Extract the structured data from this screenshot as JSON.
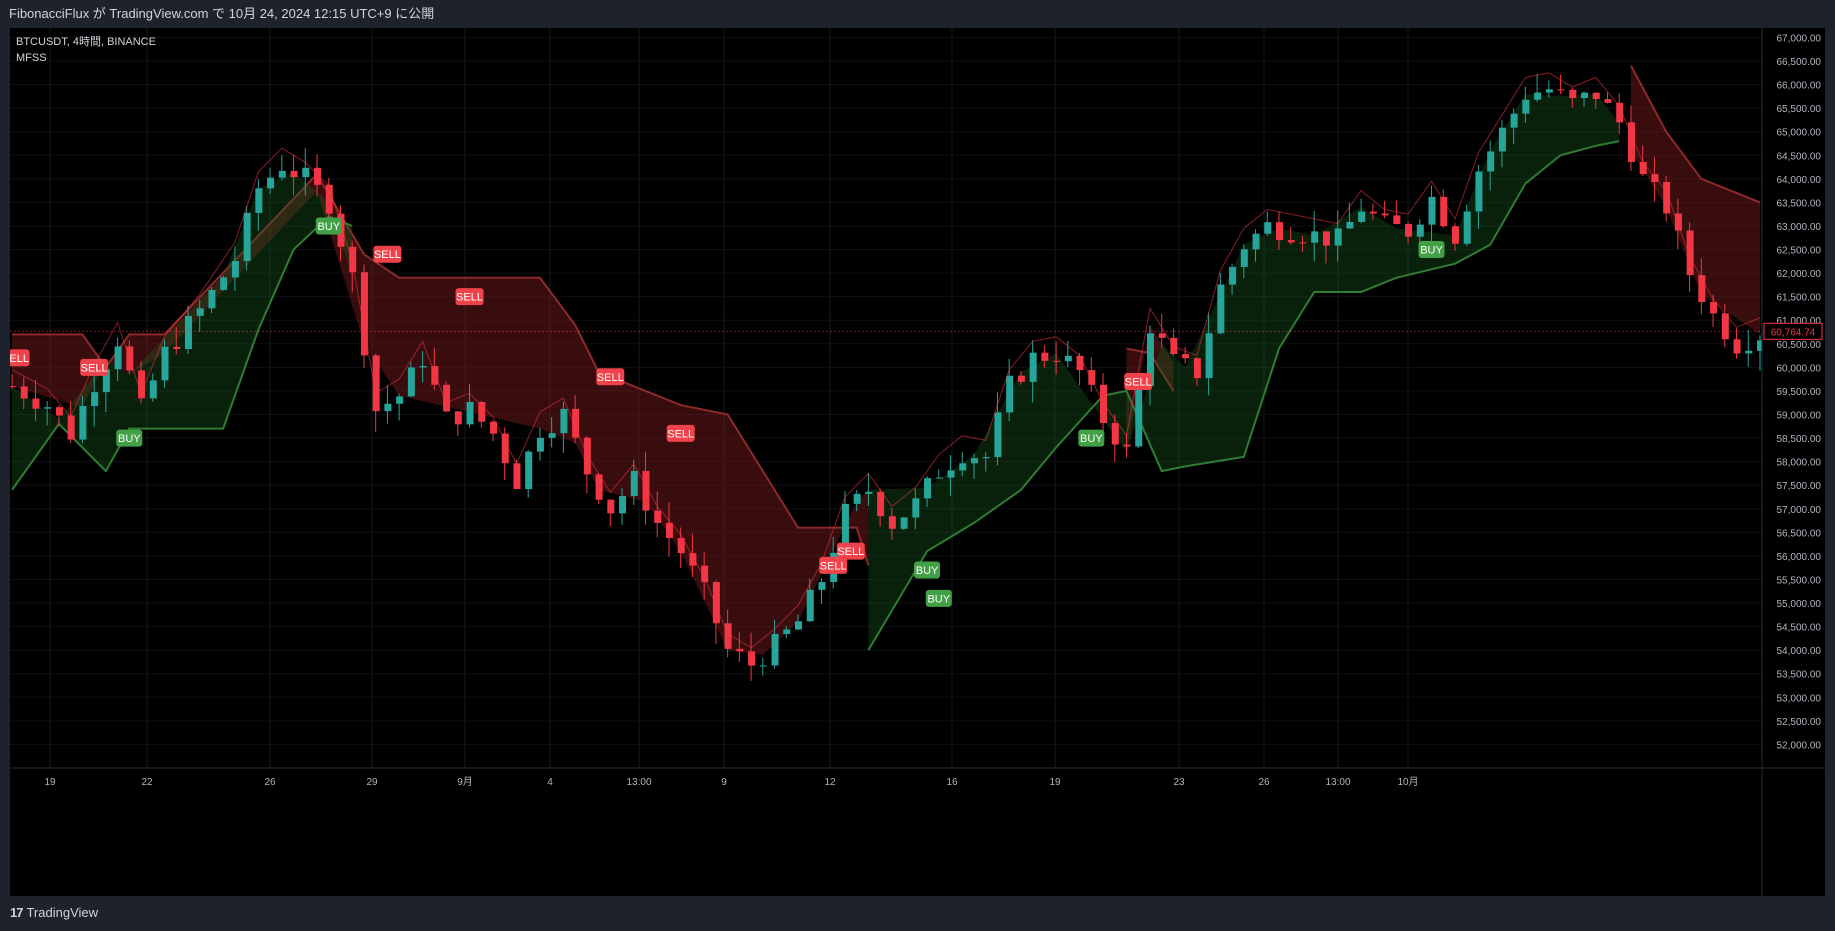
{
  "header": {
    "title": "FibonacciFlux が TradingView.com で 10月 24, 2024 12:15 UTC+9 に公開"
  },
  "legend": {
    "symbol_line": "BTCUSDT, 4時間, BINANCE",
    "indicator": "MFSS"
  },
  "footer": {
    "brand": "TradingView",
    "brand_mark": "17"
  },
  "colors": {
    "bull": "#26a69a",
    "bear": "#f23645",
    "buy_label": "#43a047",
    "sell_label": "#f0424a",
    "bull_band": "#1b5e20",
    "bear_band": "#7f1d1d",
    "price_tag": "#f23645"
  },
  "chart_data": {
    "type": "candlestick",
    "title": "",
    "xlabel": "",
    "ylabel": "",
    "ylim": [
      51500,
      67200
    ],
    "y_ticks": [
      "52,000.00",
      "52,500.00",
      "53,000.00",
      "53,500.00",
      "54,000.00",
      "54,500.00",
      "55,000.00",
      "55,500.00",
      "56,000.00",
      "56,500.00",
      "57,000.00",
      "57,500.00",
      "58,000.00",
      "58,500.00",
      "59,000.00",
      "59,500.00",
      "60,000.00",
      "60,500.00",
      "61,000.00",
      "61,500.00",
      "62,000.00",
      "62,500.00",
      "63,000.00",
      "63,500.00",
      "64,000.00",
      "64,500.00",
      "65,000.00",
      "65,500.00",
      "66,000.00",
      "66,500.00",
      "67,000.00"
    ],
    "x_ticks": [
      "19",
      "22",
      "26",
      "29",
      "9月",
      "4",
      "13:00",
      "9",
      "12",
      "16",
      "19",
      "23",
      "26",
      "13:00",
      "10月"
    ],
    "last_price": "60,764.74",
    "price_path": [
      {
        "x": 0,
        "y": 59600
      },
      {
        "x": 3,
        "y": 59200
      },
      {
        "x": 5,
        "y": 58600
      },
      {
        "x": 7,
        "y": 59700
      },
      {
        "x": 9,
        "y": 60600
      },
      {
        "x": 11,
        "y": 59100
      },
      {
        "x": 13,
        "y": 60300
      },
      {
        "x": 16,
        "y": 61200
      },
      {
        "x": 19,
        "y": 62300
      },
      {
        "x": 21,
        "y": 63800
      },
      {
        "x": 23,
        "y": 64300
      },
      {
        "x": 25,
        "y": 64000
      },
      {
        "x": 27,
        "y": 63500
      },
      {
        "x": 29,
        "y": 61900
      },
      {
        "x": 31,
        "y": 59100
      },
      {
        "x": 33,
        "y": 59400
      },
      {
        "x": 35,
        "y": 60200
      },
      {
        "x": 37,
        "y": 58900
      },
      {
        "x": 39,
        "y": 59100
      },
      {
        "x": 41,
        "y": 58600
      },
      {
        "x": 43,
        "y": 57600
      },
      {
        "x": 45,
        "y": 58700
      },
      {
        "x": 47,
        "y": 59000
      },
      {
        "x": 49,
        "y": 57800
      },
      {
        "x": 51,
        "y": 57000
      },
      {
        "x": 53,
        "y": 57600
      },
      {
        "x": 55,
        "y": 56700
      },
      {
        "x": 57,
        "y": 56100
      },
      {
        "x": 59,
        "y": 55200
      },
      {
        "x": 61,
        "y": 54000
      },
      {
        "x": 63,
        "y": 53700
      },
      {
        "x": 65,
        "y": 54100
      },
      {
        "x": 67,
        "y": 54600
      },
      {
        "x": 69,
        "y": 55500
      },
      {
        "x": 71,
        "y": 56900
      },
      {
        "x": 73,
        "y": 57400
      },
      {
        "x": 75,
        "y": 56700
      },
      {
        "x": 77,
        "y": 57100
      },
      {
        "x": 79,
        "y": 57800
      },
      {
        "x": 81,
        "y": 58200
      },
      {
        "x": 83,
        "y": 58100
      },
      {
        "x": 85,
        "y": 59600
      },
      {
        "x": 87,
        "y": 60200
      },
      {
        "x": 89,
        "y": 60300
      },
      {
        "x": 91,
        "y": 59900
      },
      {
        "x": 93,
        "y": 58900
      },
      {
        "x": 95,
        "y": 58200
      },
      {
        "x": 97,
        "y": 60900
      },
      {
        "x": 99,
        "y": 60100
      },
      {
        "x": 101,
        "y": 59900
      },
      {
        "x": 103,
        "y": 61700
      },
      {
        "x": 105,
        "y": 62600
      },
      {
        "x": 107,
        "y": 63000
      },
      {
        "x": 109,
        "y": 62900
      },
      {
        "x": 111,
        "y": 62800
      },
      {
        "x": 113,
        "y": 62700
      },
      {
        "x": 115,
        "y": 63400
      },
      {
        "x": 117,
        "y": 63000
      },
      {
        "x": 119,
        "y": 62900
      },
      {
        "x": 121,
        "y": 63600
      },
      {
        "x": 123,
        "y": 62800
      },
      {
        "x": 125,
        "y": 64200
      },
      {
        "x": 127,
        "y": 65000
      },
      {
        "x": 129,
        "y": 65800
      },
      {
        "x": 131,
        "y": 65900
      },
      {
        "x": 133,
        "y": 65600
      },
      {
        "x": 135,
        "y": 65800
      },
      {
        "x": 137,
        "y": 65200
      },
      {
        "x": 139,
        "y": 64000
      },
      {
        "x": 141,
        "y": 63400
      },
      {
        "x": 143,
        "y": 62000
      },
      {
        "x": 145,
        "y": 61100
      },
      {
        "x": 147,
        "y": 60500
      },
      {
        "x": 149,
        "y": 60700
      }
    ],
    "upper_band": [
      {
        "x": 0,
        "y": 60700
      },
      {
        "x": 6,
        "y": 60700
      },
      {
        "x": 8,
        "y": 60000
      },
      {
        "x": 10,
        "y": 60700
      },
      {
        "x": 13,
        "y": 60700
      },
      {
        "x": 26,
        "y": 64100
      },
      {
        "x": 30,
        "y": 62400
      },
      {
        "x": 33,
        "y": 61900
      },
      {
        "x": 45,
        "y": 61900
      },
      {
        "x": 48,
        "y": 60900
      },
      {
        "x": 50,
        "y": 59900
      },
      {
        "x": 54,
        "y": 59500
      },
      {
        "x": 57,
        "y": 59200
      },
      {
        "x": 61,
        "y": 59000
      },
      {
        "x": 64,
        "y": 57800
      },
      {
        "x": 67,
        "y": 56600
      },
      {
        "x": 72,
        "y": 56600
      },
      {
        "x": 73,
        "y": 55800
      }
    ],
    "upper_band_2": [
      {
        "x": 95,
        "y": 60400
      },
      {
        "x": 97,
        "y": 60300
      },
      {
        "x": 99,
        "y": 59500
      }
    ],
    "upper_band_3": [
      {
        "x": 138,
        "y": 66400
      },
      {
        "x": 141,
        "y": 65000
      },
      {
        "x": 144,
        "y": 64000
      },
      {
        "x": 149,
        "y": 63500
      }
    ],
    "lower_band": [
      {
        "x": 0,
        "y": 57400
      },
      {
        "x": 4,
        "y": 58800
      },
      {
        "x": 8,
        "y": 57800
      },
      {
        "x": 10,
        "y": 58700
      },
      {
        "x": 18,
        "y": 58700
      },
      {
        "x": 21,
        "y": 60800
      },
      {
        "x": 24,
        "y": 62500
      },
      {
        "x": 27,
        "y": 63200
      },
      {
        "x": 29,
        "y": 63000
      }
    ],
    "lower_band_2": [
      {
        "x": 73,
        "y": 54000
      },
      {
        "x": 78,
        "y": 56100
      },
      {
        "x": 82,
        "y": 56700
      },
      {
        "x": 86,
        "y": 57400
      },
      {
        "x": 89,
        "y": 58300
      },
      {
        "x": 93,
        "y": 59400
      },
      {
        "x": 95,
        "y": 59500
      },
      {
        "x": 98,
        "y": 57800
      },
      {
        "x": 100,
        "y": 57900
      },
      {
        "x": 105,
        "y": 58100
      },
      {
        "x": 108,
        "y": 60400
      },
      {
        "x": 111,
        "y": 61600
      },
      {
        "x": 115,
        "y": 61600
      },
      {
        "x": 118,
        "y": 61900
      },
      {
        "x": 123,
        "y": 62200
      },
      {
        "x": 126,
        "y": 62600
      },
      {
        "x": 129,
        "y": 63900
      },
      {
        "x": 132,
        "y": 64500
      },
      {
        "x": 135,
        "y": 64700
      },
      {
        "x": 137,
        "y": 64800
      }
    ],
    "signals": [
      {
        "type": "SELL",
        "x": 0.3,
        "price": 60200
      },
      {
        "type": "SELL",
        "x": 7,
        "price": 60000
      },
      {
        "type": "BUY",
        "x": 10,
        "price": 58500
      },
      {
        "type": "BUY",
        "x": 27,
        "price": 63000
      },
      {
        "type": "SELL",
        "x": 32,
        "price": 62400
      },
      {
        "type": "SELL",
        "x": 39,
        "price": 61500
      },
      {
        "type": "SELL",
        "x": 51,
        "price": 59800
      },
      {
        "type": "SELL",
        "x": 57,
        "price": 58600
      },
      {
        "type": "SELL",
        "x": 70,
        "price": 55800
      },
      {
        "type": "SELL",
        "x": 71.5,
        "price": 56100
      },
      {
        "type": "BUY",
        "x": 78,
        "price": 55700
      },
      {
        "type": "BUY",
        "x": 79,
        "price": 55100
      },
      {
        "type": "BUY",
        "x": 92,
        "price": 58500
      },
      {
        "type": "SELL",
        "x": 96,
        "price": 59700
      },
      {
        "type": "BUY",
        "x": 121,
        "price": 62500
      }
    ]
  }
}
